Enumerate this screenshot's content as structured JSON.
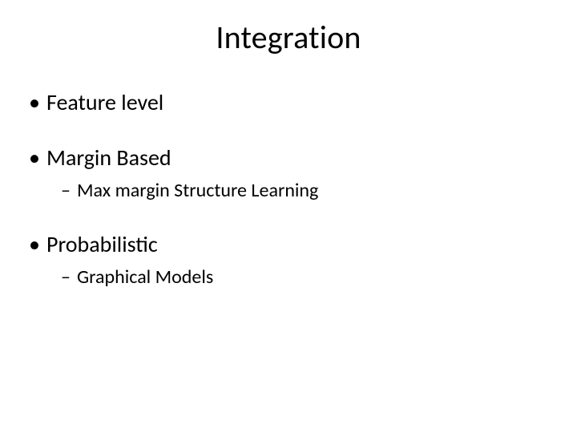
{
  "title": "Integration",
  "items": {
    "feature": "Feature level",
    "margin": "Margin Based",
    "margin_sub": "Max margin Structure Learning",
    "prob": "Probabilistic",
    "prob_sub": "Graphical Models"
  },
  "glyphs": {
    "dot": "•",
    "dash": "–"
  },
  "style": {
    "background": "#ffffff",
    "text_color": "#000000",
    "title_fontsize": 40,
    "lvl1_fontsize": 28,
    "lvl2_fontsize": 24
  }
}
